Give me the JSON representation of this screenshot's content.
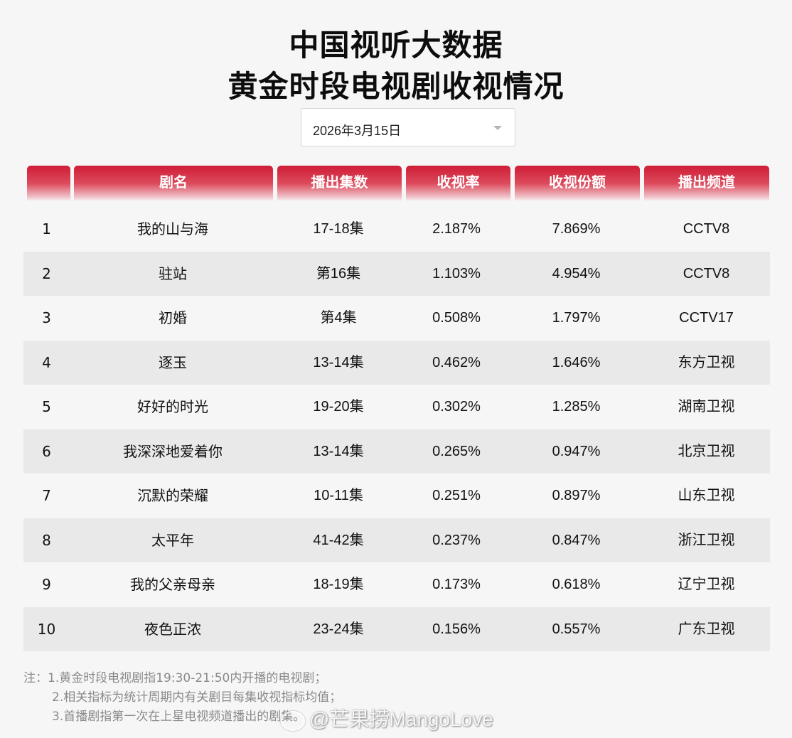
{
  "title": {
    "line1": "中国视听大数据",
    "line2": "黄金时段电视剧收视情况"
  },
  "date_select": {
    "value": "2026年3月15日"
  },
  "table": {
    "headers": [
      "",
      "剧名",
      "播出集数",
      "收视率",
      "收视份额",
      "播出频道"
    ],
    "rows": [
      {
        "rank": "1",
        "name": "我的山与海",
        "episodes": "17-18集",
        "rating": "2.187%",
        "share": "7.869%",
        "channel": "CCTV8"
      },
      {
        "rank": "2",
        "name": "驻站",
        "episodes": "第16集",
        "rating": "1.103%",
        "share": "4.954%",
        "channel": "CCTV8"
      },
      {
        "rank": "3",
        "name": "初婚",
        "episodes": "第4集",
        "rating": "0.508%",
        "share": "1.797%",
        "channel": "CCTV17"
      },
      {
        "rank": "4",
        "name": "逐玉",
        "episodes": "13-14集",
        "rating": "0.462%",
        "share": "1.646%",
        "channel": "东方卫视"
      },
      {
        "rank": "5",
        "name": "好好的时光",
        "episodes": "19-20集",
        "rating": "0.302%",
        "share": "1.285%",
        "channel": "湖南卫视"
      },
      {
        "rank": "6",
        "name": "我深深地爱着你",
        "episodes": "13-14集",
        "rating": "0.265%",
        "share": "0.947%",
        "channel": "北京卫视"
      },
      {
        "rank": "7",
        "name": "沉默的荣耀",
        "episodes": "10-11集",
        "rating": "0.251%",
        "share": "0.897%",
        "channel": "山东卫视"
      },
      {
        "rank": "8",
        "name": "太平年",
        "episodes": "41-42集",
        "rating": "0.237%",
        "share": "0.847%",
        "channel": "浙江卫视"
      },
      {
        "rank": "9",
        "name": "我的父亲母亲",
        "episodes": "18-19集",
        "rating": "0.173%",
        "share": "0.618%",
        "channel": "辽宁卫视"
      },
      {
        "rank": "10",
        "name": "夜色正浓",
        "episodes": "23-24集",
        "rating": "0.156%",
        "share": "0.557%",
        "channel": "广东卫视"
      }
    ]
  },
  "notes": [
    "注：1.黄金时段电视剧指19:30-21:50内开播的电视剧；",
    "2.相关指标为统计周期内有关剧目每集收视指标均值；",
    "3.首播剧指第一次在上星电视频道播出的剧集。"
  ],
  "watermark": "@芒果捞MangoLove",
  "colors": {
    "header_red": "#cf1d36",
    "row_alt": "#e9e9e9",
    "background": "#f6f6f6"
  }
}
